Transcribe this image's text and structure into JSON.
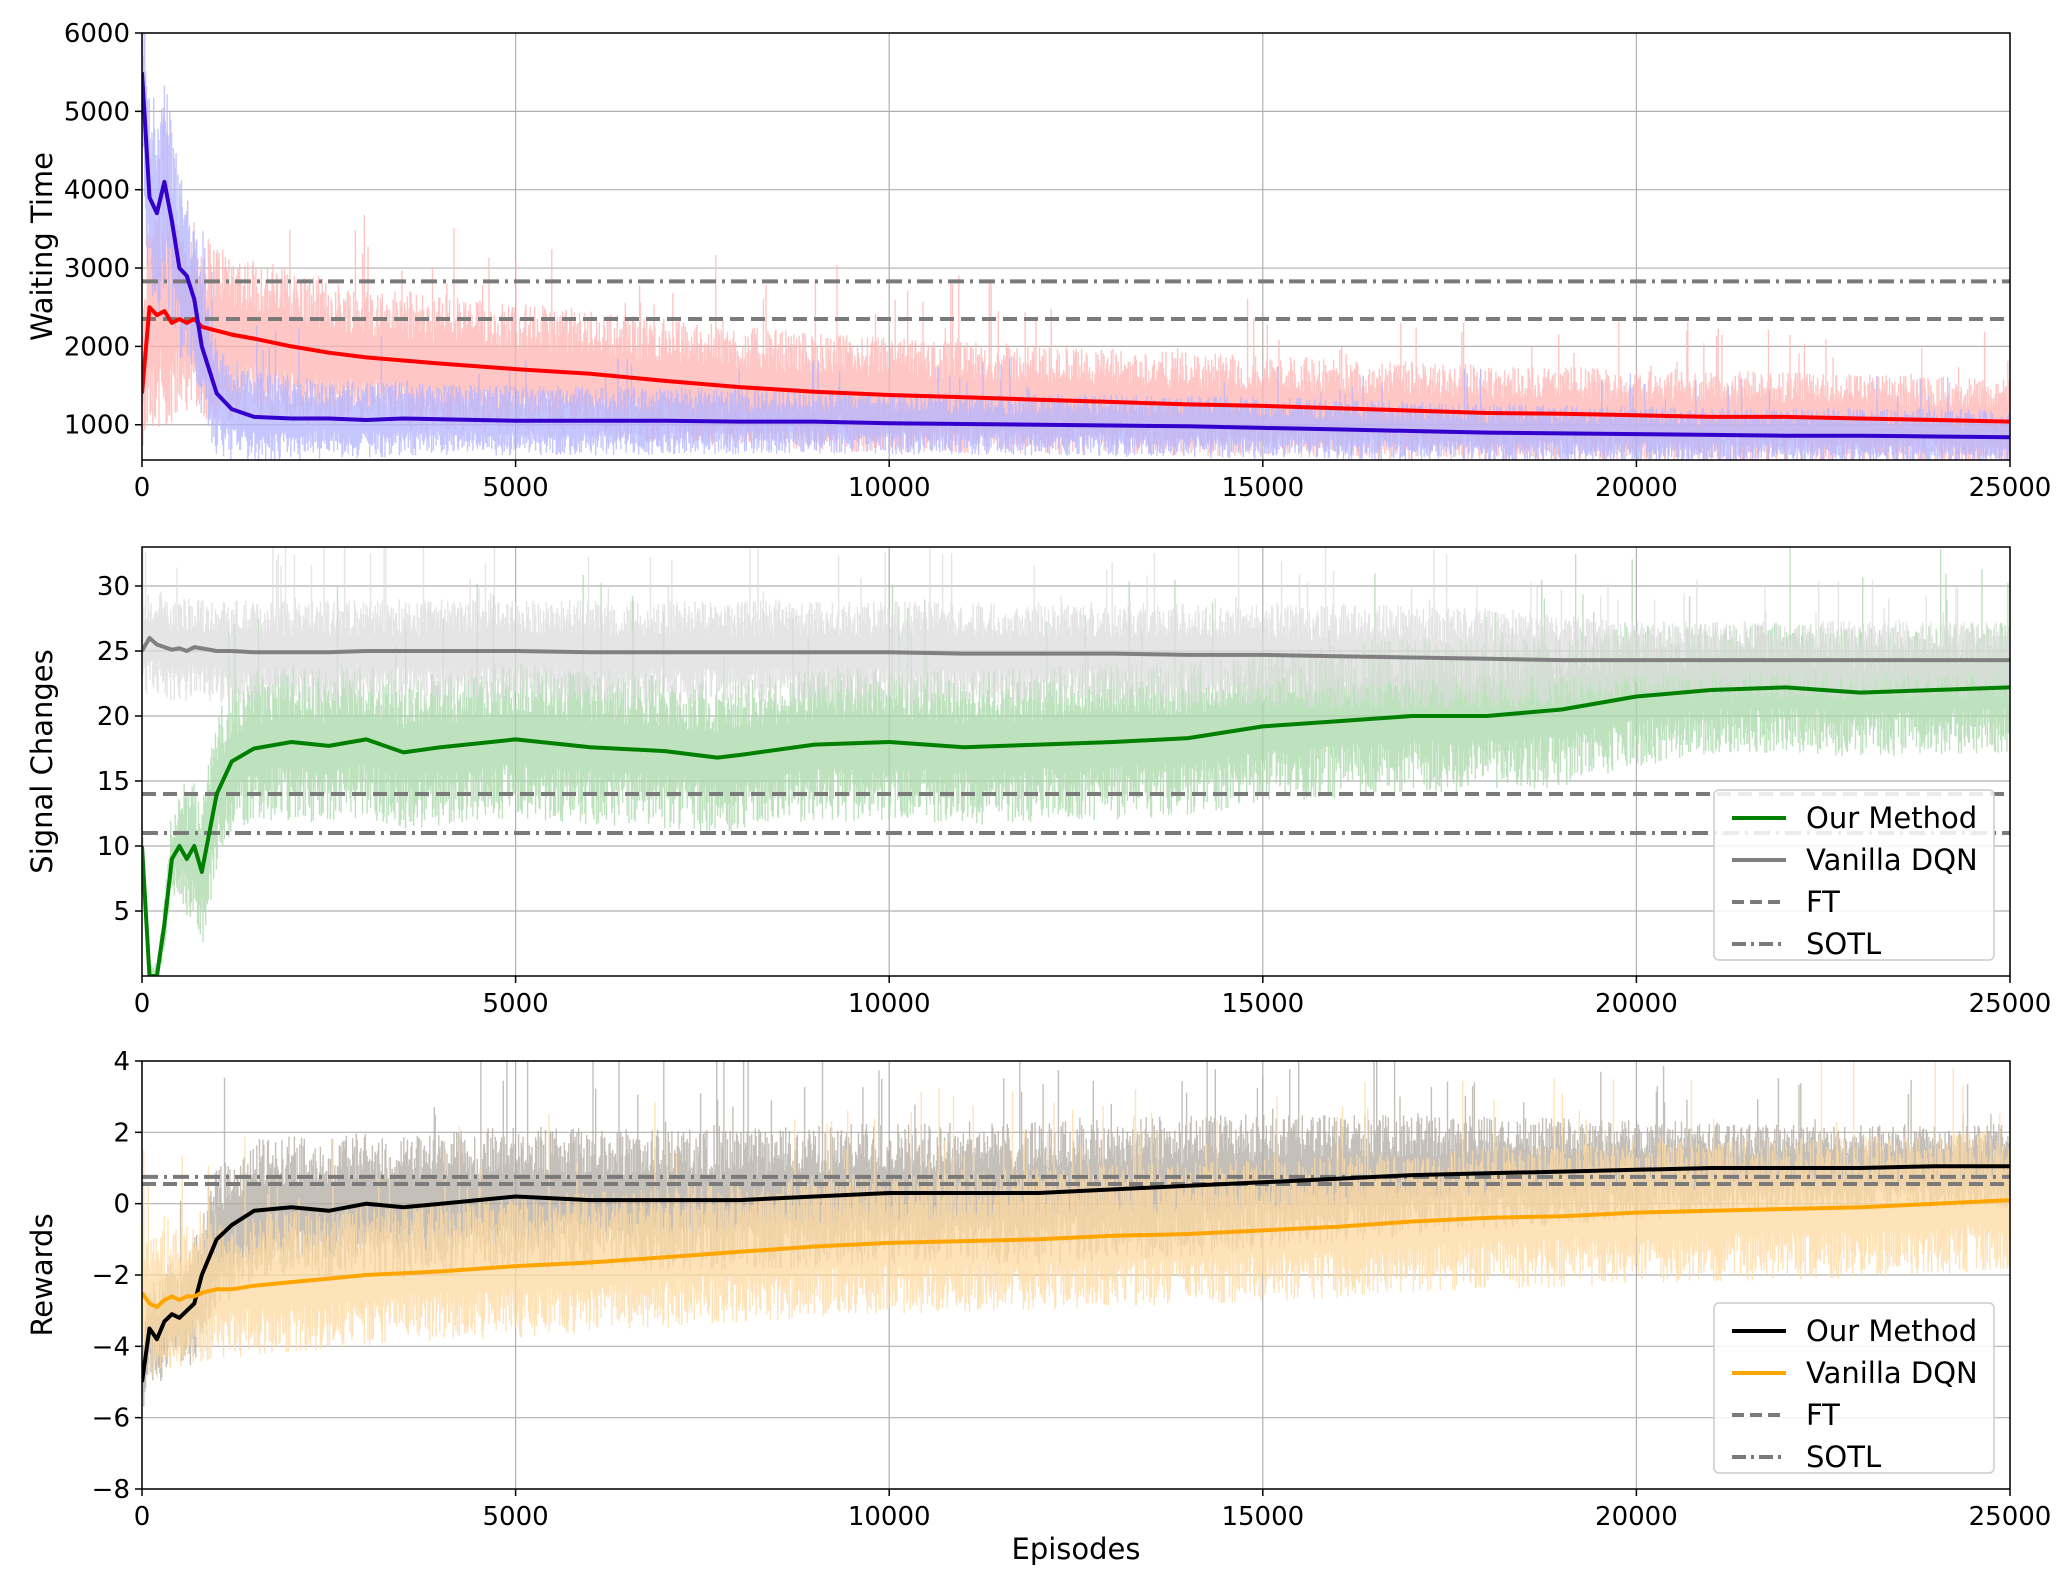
{
  "chart_data": [
    {
      "type": "line",
      "xlabel": "",
      "ylabel": "Waiting Time",
      "xlim": [
        0,
        25000
      ],
      "ylim": [
        550,
        6000
      ],
      "x_ticks": [
        0,
        5000,
        10000,
        15000,
        20000,
        25000
      ],
      "y_ticks": [
        1000,
        2000,
        3000,
        4000,
        5000,
        6000
      ],
      "grid": true,
      "legend": null,
      "x": [
        0,
        100,
        200,
        300,
        400,
        500,
        600,
        700,
        800,
        1000,
        1200,
        1500,
        2000,
        2500,
        3000,
        3500,
        4000,
        5000,
        6000,
        7000,
        8000,
        9000,
        10000,
        11000,
        12000,
        13000,
        14000,
        15000,
        16000,
        17000,
        18000,
        19000,
        20000,
        21000,
        22000,
        23000,
        24000,
        25000
      ],
      "series": [
        {
          "color": "#ff0000",
          "noise_color": "#ffb3b3",
          "values": [
            1400,
            2500,
            2400,
            2450,
            2300,
            2350,
            2300,
            2350,
            2250,
            2200,
            2150,
            2100,
            2000,
            1920,
            1860,
            1820,
            1780,
            1710,
            1650,
            1560,
            1480,
            1420,
            1380,
            1350,
            1320,
            1290,
            1260,
            1240,
            1210,
            1180,
            1150,
            1140,
            1120,
            1100,
            1100,
            1080,
            1060,
            1040
          ],
          "noise": [
            700,
            1500,
            1500,
            1500,
            1400,
            1300,
            1300,
            1250,
            1200,
            1150,
            1100,
            1050,
            1000,
            950,
            900,
            900,
            880,
            850,
            820,
            800,
            780,
            760,
            740,
            720,
            700,
            680,
            660,
            650,
            640,
            630,
            620,
            610,
            600,
            590,
            580,
            570,
            560,
            550
          ]
        },
        {
          "color": "#3300cc",
          "noise_color": "#b3b3ff",
          "values": [
            5500,
            3900,
            3700,
            4100,
            3600,
            3000,
            2900,
            2600,
            2000,
            1400,
            1200,
            1100,
            1080,
            1080,
            1060,
            1080,
            1070,
            1050,
            1050,
            1050,
            1040,
            1040,
            1020,
            1010,
            1000,
            990,
            980,
            960,
            940,
            920,
            900,
            890,
            880,
            870,
            860,
            860,
            850,
            840
          ],
          "noise": [
            1500,
            1500,
            1500,
            1400,
            1300,
            1200,
            1100,
            1000,
            900,
            800,
            700,
            600,
            550,
            500,
            500,
            480,
            460,
            450,
            440,
            430,
            420,
            410,
            400,
            400,
            400,
            400,
            400,
            400,
            390,
            380,
            370,
            370,
            360,
            360,
            350,
            350,
            350,
            350
          ]
        }
      ],
      "hlines": [
        {
          "label": "FT",
          "value": 2350,
          "style": "dashed"
        },
        {
          "label": "SOTL",
          "value": 2830,
          "style": "dashdot"
        }
      ]
    },
    {
      "type": "line",
      "xlabel": "",
      "ylabel": "Signal Changes",
      "xlim": [
        0,
        25000
      ],
      "ylim": [
        0,
        33
      ],
      "x_ticks": [
        0,
        5000,
        10000,
        15000,
        20000,
        25000
      ],
      "y_ticks": [
        5,
        10,
        15,
        20,
        25,
        30
      ],
      "grid": true,
      "legend": {
        "position": "lower-right",
        "entries": [
          "Our Method",
          "Vanilla DQN",
          "FT",
          "SOTL"
        ]
      },
      "x": [
        0,
        100,
        200,
        300,
        400,
        500,
        600,
        700,
        800,
        1000,
        1200,
        1500,
        2000,
        2500,
        3000,
        3500,
        4000,
        5000,
        6000,
        7000,
        7700,
        8000,
        9000,
        10000,
        11000,
        12000,
        13000,
        14000,
        15000,
        16000,
        17000,
        18000,
        19000,
        20000,
        21000,
        22000,
        23000,
        24000,
        25000
      ],
      "series": [
        {
          "name": "Our Method",
          "color": "#008000",
          "noise_color": "#a8d8a8",
          "values": [
            10,
            0,
            0,
            4,
            9,
            10,
            9,
            10,
            8,
            14,
            16.5,
            17.5,
            18,
            17.7,
            18.2,
            17.2,
            17.6,
            18.2,
            17.6,
            17.3,
            16.8,
            17.0,
            17.8,
            18.0,
            17.6,
            17.8,
            18.0,
            18.3,
            19.2,
            19.6,
            20.0,
            20.0,
            20.5,
            21.5,
            22.0,
            22.2,
            21.8,
            22.0,
            22.2
          ],
          "noise": [
            2,
            1,
            1,
            2,
            3,
            4,
            5,
            6,
            6,
            6,
            6,
            6,
            6,
            6,
            6,
            6,
            6,
            6,
            6,
            6,
            6,
            6,
            6,
            6,
            6,
            6,
            6,
            6,
            6,
            6,
            6,
            6,
            6,
            5.5,
            5,
            5,
            5,
            5,
            5
          ]
        },
        {
          "name": "Vanilla DQN",
          "color": "#808080",
          "noise_color": "#dcdcdc",
          "values": [
            25,
            26,
            25.5,
            25.3,
            25.1,
            25.2,
            25.0,
            25.3,
            25.2,
            25.0,
            25.0,
            24.9,
            24.9,
            24.9,
            25.0,
            25.0,
            25.0,
            25.0,
            24.9,
            24.9,
            24.9,
            24.9,
            24.9,
            24.9,
            24.8,
            24.8,
            24.8,
            24.7,
            24.7,
            24.6,
            24.5,
            24.4,
            24.3,
            24.3,
            24.3,
            24.3,
            24.3,
            24.3,
            24.3
          ],
          "noise": [
            4,
            4,
            4,
            4,
            4,
            4,
            4,
            4,
            4,
            4,
            4,
            4,
            4,
            4,
            4,
            4,
            4,
            4,
            4,
            4,
            4,
            4,
            4,
            4,
            4,
            4,
            4,
            4,
            4,
            4,
            4,
            4,
            3.5,
            3,
            3,
            3,
            3,
            3,
            3
          ]
        }
      ],
      "hlines": [
        {
          "label": "FT",
          "value": 14,
          "style": "dashed"
        },
        {
          "label": "SOTL",
          "value": 11,
          "style": "dashdot"
        }
      ]
    },
    {
      "type": "line",
      "xlabel": "Episodes",
      "ylabel": "Rewards",
      "xlim": [
        0,
        25000
      ],
      "ylim": [
        -8,
        4
      ],
      "x_ticks": [
        0,
        5000,
        10000,
        15000,
        20000,
        25000
      ],
      "y_ticks": [
        -8,
        -6,
        -4,
        -2,
        0,
        2,
        4
      ],
      "grid": true,
      "legend": {
        "position": "lower-right",
        "entries": [
          "Our Method",
          "Vanilla DQN",
          "FT",
          "SOTL"
        ]
      },
      "x": [
        0,
        100,
        200,
        300,
        400,
        500,
        600,
        700,
        800,
        1000,
        1200,
        1500,
        2000,
        2500,
        3000,
        3500,
        4000,
        5000,
        6000,
        7000,
        8000,
        9000,
        10000,
        11000,
        12000,
        13000,
        14000,
        15000,
        16000,
        17000,
        18000,
        19000,
        20000,
        21000,
        22000,
        23000,
        24000,
        25000
      ],
      "series": [
        {
          "name": "Our Method",
          "color": "#000000",
          "noise_color": "#b0a9a0",
          "values": [
            -5,
            -3.5,
            -3.8,
            -3.3,
            -3.1,
            -3.2,
            -3.0,
            -2.8,
            -2.0,
            -1.0,
            -0.6,
            -0.2,
            -0.1,
            -0.2,
            0.0,
            -0.1,
            0.0,
            0.2,
            0.1,
            0.1,
            0.1,
            0.2,
            0.3,
            0.3,
            0.3,
            0.4,
            0.5,
            0.6,
            0.7,
            0.8,
            0.85,
            0.9,
            0.95,
            1.0,
            1.0,
            1.0,
            1.05,
            1.05
          ],
          "noise": [
            1,
            1.5,
            1.5,
            1.5,
            1.5,
            1.5,
            1.6,
            1.8,
            1.8,
            2.0,
            2.0,
            2.0,
            2.0,
            2.0,
            2.0,
            2.0,
            2.0,
            2.0,
            2.0,
            2.0,
            2.0,
            2.0,
            2.0,
            2.0,
            2.0,
            2.0,
            2.0,
            1.9,
            1.8,
            1.7,
            1.6,
            1.5,
            1.4,
            1.3,
            1.2,
            1.2,
            1.2,
            1.2
          ]
        },
        {
          "name": "Vanilla DQN",
          "color": "#ffa500",
          "noise_color": "#ffd9a0",
          "values": [
            -2.5,
            -2.8,
            -2.9,
            -2.7,
            -2.6,
            -2.7,
            -2.6,
            -2.6,
            -2.5,
            -2.4,
            -2.4,
            -2.3,
            -2.2,
            -2.1,
            -2.0,
            -1.95,
            -1.9,
            -1.75,
            -1.65,
            -1.5,
            -1.35,
            -1.2,
            -1.1,
            -1.05,
            -1.0,
            -0.9,
            -0.85,
            -0.75,
            -0.65,
            -0.5,
            -0.4,
            -0.35,
            -0.25,
            -0.2,
            -0.15,
            -0.1,
            0.0,
            0.1
          ],
          "noise": [
            2,
            2,
            2,
            2,
            2,
            2,
            2,
            2,
            2,
            2,
            2,
            2,
            2,
            2,
            2,
            2,
            2,
            2,
            2,
            2,
            2,
            2,
            2,
            2,
            2,
            2,
            2,
            2,
            2,
            2,
            2,
            2,
            2,
            2,
            2,
            2,
            2,
            2
          ]
        }
      ],
      "hlines": [
        {
          "label": "FT",
          "value": 0.55,
          "style": "dashed"
        },
        {
          "label": "SOTL",
          "value": 0.75,
          "style": "dashdot"
        }
      ]
    }
  ]
}
